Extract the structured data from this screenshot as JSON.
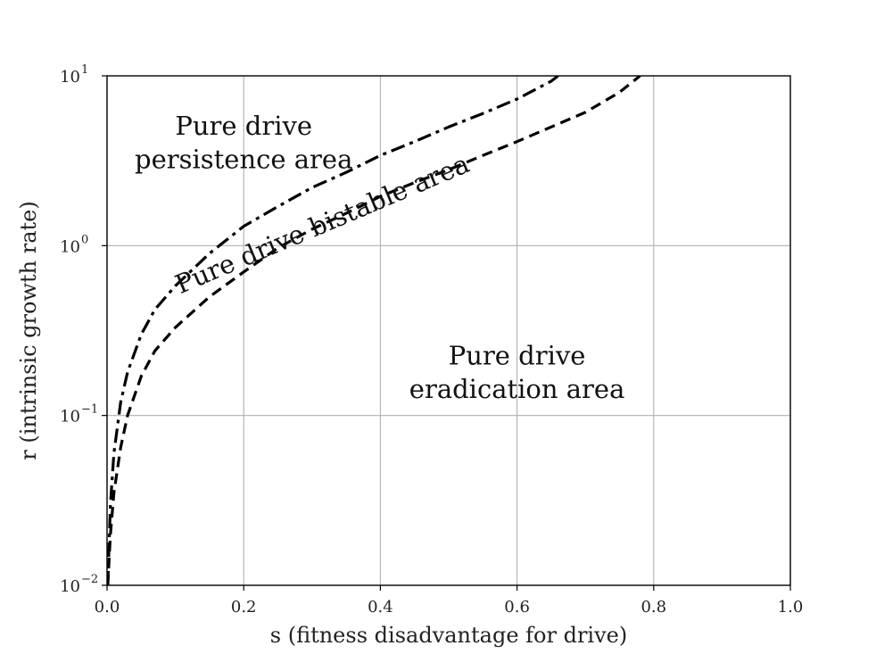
{
  "chart_data": {
    "type": "line",
    "xlabel": "s (fitness disadvantage for drive)",
    "ylabel": "r (intrinsic growth rate)",
    "xlim": [
      0.0,
      1.0
    ],
    "ylim": [
      0.01,
      10
    ],
    "y_scale": "log",
    "grid": true,
    "x_ticks": [
      "0.0",
      "0.2",
      "0.4",
      "0.6",
      "0.8",
      "1.0"
    ],
    "y_ticks": [
      {
        "base": "10",
        "exp": "−2",
        "value": 0.01
      },
      {
        "base": "10",
        "exp": "−1",
        "value": 0.1
      },
      {
        "base": "10",
        "exp": "0",
        "value": 1
      },
      {
        "base": "10",
        "exp": "1",
        "value": 10
      }
    ],
    "series": [
      {
        "style": "dashdot",
        "color": "#000000",
        "x": [
          0.001,
          0.005,
          0.01,
          0.02,
          0.03,
          0.05,
          0.07,
          0.1,
          0.15,
          0.2,
          0.25,
          0.3,
          0.35,
          0.4,
          0.45,
          0.5,
          0.55,
          0.6,
          0.65,
          0.66
        ],
        "y": [
          0.01,
          0.03,
          0.06,
          0.12,
          0.18,
          0.3,
          0.42,
          0.58,
          0.9,
          1.3,
          1.7,
          2.2,
          2.7,
          3.4,
          4.1,
          5.0,
          6.0,
          7.3,
          9.3,
          10.0
        ]
      },
      {
        "style": "dashed",
        "color": "#000000",
        "x": [
          0.001,
          0.005,
          0.01,
          0.02,
          0.03,
          0.05,
          0.07,
          0.1,
          0.15,
          0.2,
          0.25,
          0.3,
          0.35,
          0.4,
          0.45,
          0.5,
          0.55,
          0.6,
          0.65,
          0.7,
          0.75,
          0.78
        ],
        "y": [
          0.01,
          0.02,
          0.035,
          0.065,
          0.1,
          0.17,
          0.24,
          0.33,
          0.5,
          0.7,
          0.97,
          1.25,
          1.55,
          1.95,
          2.35,
          2.8,
          3.4,
          4.1,
          5.0,
          6.1,
          8.0,
          10.0
        ]
      }
    ],
    "annotations": [
      {
        "lines": [
          "Pure drive",
          "persistence area"
        ],
        "x": 0.2,
        "y": 4.5
      },
      {
        "lines": [
          "Pure drive bistable area"
        ],
        "x": 0.32,
        "y": 1.2,
        "angle": -23
      },
      {
        "lines": [
          "Pure drive",
          "eradication area"
        ],
        "x": 0.6,
        "y": 0.2
      }
    ]
  }
}
